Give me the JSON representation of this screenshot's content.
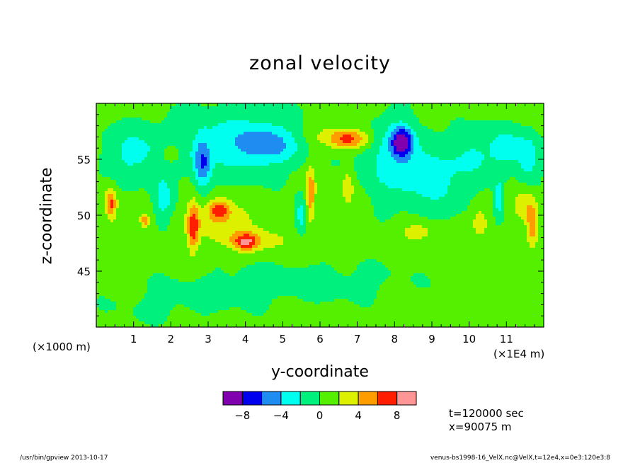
{
  "chart_data": {
    "type": "heatmap",
    "title": "zonal velocity",
    "xlabel": "y-coordinate",
    "ylabel": "z-coordinate",
    "x_scale_label": "(×1E4 m)",
    "y_scale_label": "(×1000 m)",
    "xlim": [
      0,
      12
    ],
    "ylim": [
      40,
      60
    ],
    "x_ticks": [
      1,
      2,
      3,
      4,
      5,
      6,
      7,
      8,
      9,
      10,
      11
    ],
    "y_ticks": [
      45,
      50,
      55
    ],
    "colorbar": {
      "levels": [
        -10,
        -8,
        -6,
        -4,
        -2,
        0,
        2,
        4,
        6,
        8,
        10
      ],
      "tick_labels": [
        "-8",
        "-4",
        "0",
        "4",
        "8"
      ],
      "tick_values": [
        -8,
        -4,
        0,
        4,
        8
      ],
      "colors": [
        "#8000b0",
        "#0000ee",
        "#1e8cf0",
        "#00ffee",
        "#00f07e",
        "#55f000",
        "#dcf000",
        "#ff9c00",
        "#ff1e00",
        "#ff9696"
      ]
    },
    "features": [
      {
        "y": 8.2,
        "z": 56.6,
        "sy": 0.28,
        "sz": 1.3,
        "amp": -8.5
      },
      {
        "y": 8.0,
        "z": 55.0,
        "sy": 0.9,
        "sz": 3.5,
        "amp": -3.5
      },
      {
        "y": 3.7,
        "z": 56.5,
        "sy": 1.6,
        "sz": 3.0,
        "amp": -3.4
      },
      {
        "y": 2.85,
        "z": 54.5,
        "sy": 0.22,
        "sz": 2.2,
        "amp": -5.5
      },
      {
        "y": 4.6,
        "z": 56.3,
        "sy": 0.8,
        "sz": 1.6,
        "amp": -3.8
      },
      {
        "y": 1.0,
        "z": 55.5,
        "sy": 0.8,
        "sz": 2.5,
        "amp": -3.0
      },
      {
        "y": 1.8,
        "z": 51.5,
        "sy": 0.25,
        "sz": 2.0,
        "amp": -3.5
      },
      {
        "y": 5.5,
        "z": 50.0,
        "sy": 0.15,
        "sz": 1.6,
        "amp": -4.0
      },
      {
        "y": 9.2,
        "z": 53.0,
        "sy": 0.9,
        "sz": 3.0,
        "amp": -2.6
      },
      {
        "y": 11.0,
        "z": 56.0,
        "sy": 0.5,
        "sz": 1.8,
        "amp": -3.5
      },
      {
        "y": 11.6,
        "z": 55.0,
        "sy": 0.3,
        "sz": 2.2,
        "amp": -3.5
      },
      {
        "y": 10.8,
        "z": 51.5,
        "sy": 0.12,
        "sz": 1.8,
        "amp": -4.0
      },
      {
        "y": 10.1,
        "z": 55.5,
        "sy": 0.5,
        "sz": 2.5,
        "amp": -2.4
      },
      {
        "y": 6.8,
        "z": 56.8,
        "sy": 0.5,
        "sz": 0.8,
        "amp": 4.5
      },
      {
        "y": 6.5,
        "z": 57.0,
        "sy": 0.8,
        "sz": 1.0,
        "amp": 2.5
      },
      {
        "y": 3.3,
        "z": 50.5,
        "sy": 0.3,
        "sz": 0.9,
        "amp": 5.5
      },
      {
        "y": 3.4,
        "z": 49.5,
        "sy": 0.9,
        "sz": 1.6,
        "amp": 2.6
      },
      {
        "y": 4.0,
        "z": 47.6,
        "sy": 0.3,
        "sz": 0.7,
        "amp": 5.5
      },
      {
        "y": 4.3,
        "z": 47.8,
        "sy": 1.0,
        "sz": 1.0,
        "amp": 2.6
      },
      {
        "y": 2.6,
        "z": 49.0,
        "sy": 0.15,
        "sz": 2.2,
        "amp": 6.0
      },
      {
        "y": 0.4,
        "z": 51.0,
        "sy": 0.15,
        "sz": 1.4,
        "amp": 6.0
      },
      {
        "y": 6.75,
        "z": 52.5,
        "sy": 0.15,
        "sz": 1.6,
        "amp": 3.2
      },
      {
        "y": 5.75,
        "z": 52.0,
        "sy": 0.12,
        "sz": 2.2,
        "amp": 5.5
      },
      {
        "y": 8.6,
        "z": 48.5,
        "sy": 0.4,
        "sz": 0.8,
        "amp": 3.2
      },
      {
        "y": 11.7,
        "z": 49.0,
        "sy": 0.15,
        "sz": 1.6,
        "amp": 5.5
      },
      {
        "y": 11.5,
        "z": 51.0,
        "sy": 0.3,
        "sz": 1.5,
        "amp": 2.8
      },
      {
        "y": 2.0,
        "z": 55.5,
        "sy": 0.25,
        "sz": 0.7,
        "amp": 3.0
      },
      {
        "y": 1.3,
        "z": 49.5,
        "sy": 0.12,
        "sz": 0.6,
        "amp": 4.5
      },
      {
        "y": 10.3,
        "z": 49.5,
        "sy": 0.25,
        "sz": 1.5,
        "amp": 2.6
      },
      {
        "y": 5.5,
        "z": 44.0,
        "sy": 3.0,
        "sz": 2.0,
        "amp": -1.2
      },
      {
        "y": 2.0,
        "z": 42.0,
        "sy": 2.0,
        "sz": 2.0,
        "amp": -0.8
      }
    ]
  },
  "labels": {
    "time": "t=120000 sec",
    "position": "x=90075 m"
  },
  "footer": {
    "left": "/usr/bin/gpview  2013-10-17",
    "right": "venus-bs1998-16_VelX.nc@VelX,t=12e4,x=0e3:120e3:8"
  }
}
